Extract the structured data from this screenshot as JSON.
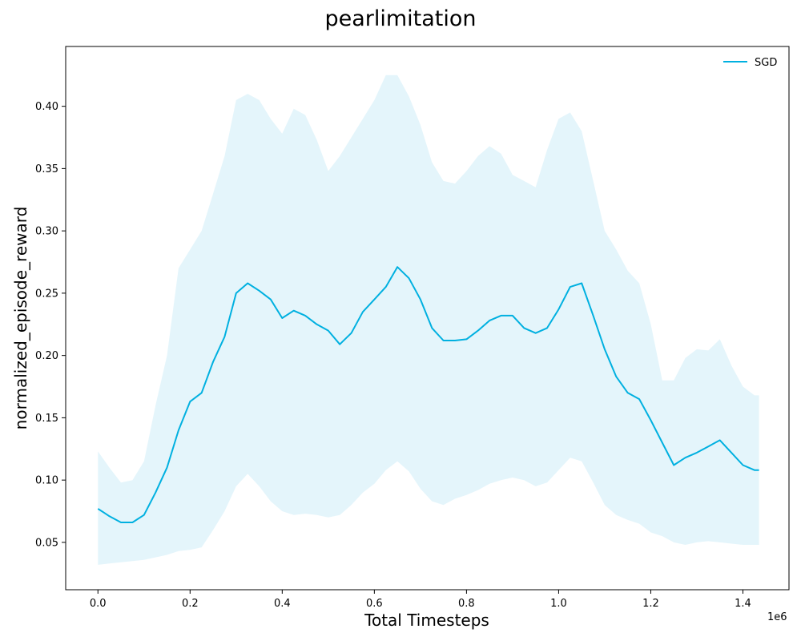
{
  "chart_data": {
    "type": "line",
    "title": "pearlimitation",
    "xlabel": "Total Timesteps",
    "ylabel": "normalized_episode_reward",
    "x_offset_label": "1e6",
    "xlim": [
      -0.07,
      1.5
    ],
    "ylim": [
      0.012,
      0.448
    ],
    "x_ticks": [
      0.0,
      0.2,
      0.4,
      0.6,
      0.8,
      1.0,
      1.2,
      1.4
    ],
    "x_tick_labels": [
      "0.0",
      "0.2",
      "0.4",
      "0.6",
      "0.8",
      "1.0",
      "1.2",
      "1.4"
    ],
    "y_ticks": [
      0.05,
      0.1,
      0.15,
      0.2,
      0.25,
      0.3,
      0.35,
      0.4
    ],
    "y_tick_labels": [
      "0.05",
      "0.10",
      "0.15",
      "0.20",
      "0.25",
      "0.30",
      "0.35",
      "0.40"
    ],
    "grid": false,
    "legend_position": "top-right",
    "series": [
      {
        "name": "SGD",
        "color": "#00b0e0",
        "band_color": "#e4f5fb",
        "x": [
          0.0,
          0.025,
          0.05,
          0.075,
          0.1,
          0.125,
          0.15,
          0.175,
          0.2,
          0.225,
          0.25,
          0.275,
          0.3,
          0.325,
          0.35,
          0.375,
          0.4,
          0.425,
          0.45,
          0.475,
          0.5,
          0.525,
          0.55,
          0.575,
          0.6,
          0.625,
          0.65,
          0.675,
          0.7,
          0.725,
          0.75,
          0.775,
          0.8,
          0.825,
          0.85,
          0.875,
          0.9,
          0.925,
          0.95,
          0.975,
          1.0,
          1.025,
          1.05,
          1.075,
          1.1,
          1.125,
          1.15,
          1.175,
          1.2,
          1.225,
          1.25,
          1.275,
          1.3,
          1.325,
          1.35,
          1.375,
          1.4,
          1.425,
          1.435
        ],
        "mean": [
          0.077,
          0.071,
          0.066,
          0.066,
          0.072,
          0.09,
          0.11,
          0.14,
          0.163,
          0.17,
          0.195,
          0.215,
          0.25,
          0.258,
          0.252,
          0.245,
          0.23,
          0.236,
          0.232,
          0.225,
          0.22,
          0.209,
          0.218,
          0.235,
          0.245,
          0.255,
          0.271,
          0.262,
          0.245,
          0.222,
          0.212,
          0.212,
          0.213,
          0.22,
          0.228,
          0.232,
          0.232,
          0.222,
          0.218,
          0.222,
          0.237,
          0.255,
          0.258,
          0.232,
          0.205,
          0.183,
          0.17,
          0.165,
          0.148,
          0.13,
          0.112,
          0.118,
          0.122,
          0.127,
          0.132,
          0.122,
          0.112,
          0.108,
          0.108
        ],
        "upper": [
          0.123,
          0.11,
          0.098,
          0.1,
          0.115,
          0.16,
          0.2,
          0.27,
          0.285,
          0.3,
          0.33,
          0.36,
          0.405,
          0.41,
          0.405,
          0.39,
          0.378,
          0.398,
          0.393,
          0.373,
          0.348,
          0.36,
          0.375,
          0.39,
          0.405,
          0.425,
          0.425,
          0.408,
          0.385,
          0.355,
          0.34,
          0.338,
          0.348,
          0.36,
          0.368,
          0.362,
          0.345,
          0.34,
          0.335,
          0.365,
          0.39,
          0.395,
          0.38,
          0.34,
          0.3,
          0.285,
          0.268,
          0.258,
          0.225,
          0.18,
          0.18,
          0.198,
          0.205,
          0.204,
          0.213,
          0.192,
          0.175,
          0.168,
          0.168
        ],
        "lower": [
          0.032,
          0.033,
          0.034,
          0.035,
          0.036,
          0.038,
          0.04,
          0.043,
          0.044,
          0.046,
          0.06,
          0.075,
          0.095,
          0.105,
          0.095,
          0.083,
          0.075,
          0.072,
          0.073,
          0.072,
          0.07,
          0.072,
          0.08,
          0.09,
          0.097,
          0.108,
          0.115,
          0.107,
          0.093,
          0.083,
          0.08,
          0.085,
          0.088,
          0.092,
          0.097,
          0.1,
          0.102,
          0.1,
          0.095,
          0.098,
          0.108,
          0.118,
          0.115,
          0.098,
          0.08,
          0.072,
          0.068,
          0.065,
          0.058,
          0.055,
          0.05,
          0.048,
          0.05,
          0.051,
          0.05,
          0.049,
          0.048,
          0.048,
          0.048
        ]
      }
    ]
  }
}
